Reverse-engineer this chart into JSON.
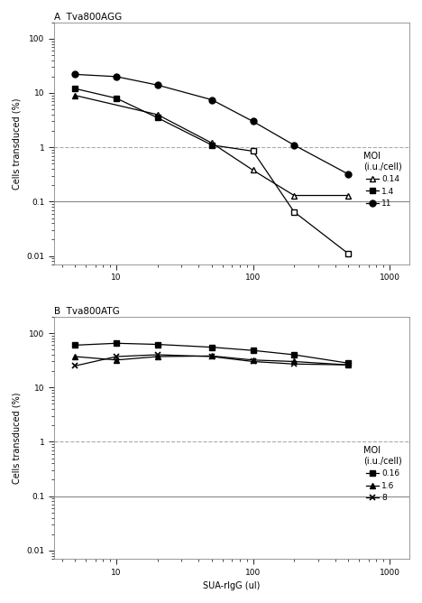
{
  "panel_A": {
    "title": "A  Tva800AGG",
    "series": [
      {
        "label": "0.14",
        "x": [
          5,
          10,
          20,
          50,
          100,
          200,
          500
        ],
        "y": [
          9.0,
          null,
          4.0,
          1.2,
          0.38,
          0.13,
          0.13
        ],
        "marker": "^",
        "filled": [
          true,
          false,
          false,
          false,
          false,
          false,
          false
        ],
        "color": "#000000"
      },
      {
        "label": "1.4",
        "x": [
          5,
          10,
          20,
          50,
          100,
          200,
          500
        ],
        "y": [
          12.0,
          8.0,
          3.5,
          1.1,
          0.85,
          0.065,
          0.011
        ],
        "marker": "s",
        "filled": [
          true,
          true,
          true,
          true,
          false,
          false,
          false
        ],
        "color": "#000000"
      },
      {
        "label": "11",
        "x": [
          5,
          10,
          20,
          50,
          100,
          200,
          500
        ],
        "y": [
          22.0,
          20.0,
          14.0,
          7.5,
          3.0,
          1.1,
          0.32
        ],
        "marker": "o",
        "filled": [
          true,
          true,
          true,
          true,
          true,
          true,
          true
        ],
        "color": "#000000"
      }
    ],
    "ylabel": "Cells transduced (%)",
    "ylim": [
      0.007,
      200
    ],
    "xlim": [
      3.5,
      1400
    ],
    "hline_solid": 0.1,
    "hline_dashed": 1.0,
    "yticks": [
      0.01,
      0.1,
      1,
      10,
      100
    ],
    "ytick_labels": [
      "0.01",
      "0.1",
      "1",
      "10",
      "100"
    ],
    "xticks": [
      10,
      100,
      1000
    ],
    "xtick_labels": [
      "10",
      "100",
      "1000"
    ],
    "legend_title": "MOI\n(i.u./cell)",
    "legend_labels": [
      "0.14",
      "1.4",
      "11"
    ],
    "legend_markers": [
      "^",
      "s",
      "o"
    ],
    "legend_filled": [
      false,
      true,
      true
    ]
  },
  "panel_B": {
    "title": "B  Tva800ATG",
    "series": [
      {
        "label": "0.16",
        "x": [
          5,
          10,
          20,
          50,
          100,
          200,
          500
        ],
        "y": [
          60.0,
          65.0,
          62.0,
          55.0,
          48.0,
          40.0,
          28.0
        ],
        "marker": "s",
        "filled": [
          true,
          true,
          true,
          true,
          true,
          true,
          true
        ],
        "color": "#000000"
      },
      {
        "label": "1.6",
        "x": [
          5,
          10,
          20,
          50,
          100,
          200,
          500
        ],
        "y": [
          37.0,
          32.0,
          37.0,
          38.0,
          32.0,
          30.0,
          26.0
        ],
        "marker": "^",
        "filled": [
          true,
          true,
          true,
          true,
          true,
          true,
          true
        ],
        "color": "#000000"
      },
      {
        "label": "8",
        "x": [
          5,
          10,
          20,
          50,
          100,
          200,
          500
        ],
        "y": [
          25.0,
          37.0,
          40.0,
          37.0,
          30.0,
          27.0,
          26.0
        ],
        "marker": "x",
        "filled": [
          true,
          true,
          true,
          true,
          true,
          true,
          true
        ],
        "color": "#000000"
      }
    ],
    "ylabel": "Cells transduced (%)",
    "xlabel": "SUA-rIgG (ul)",
    "ylim": [
      0.007,
      200
    ],
    "xlim": [
      3.5,
      1400
    ],
    "hline_solid": 0.1,
    "hline_dashed": 1.0,
    "yticks": [
      0.01,
      0.1,
      1,
      10,
      100
    ],
    "ytick_labels": [
      "0.01",
      "0.1",
      "1",
      "10",
      "100"
    ],
    "xticks": [
      10,
      100,
      1000
    ],
    "xtick_labels": [
      "10",
      "100",
      "1000"
    ],
    "legend_title": "MOI\n(i.u./cell)",
    "legend_labels": [
      "0.16",
      "1.6",
      "8"
    ],
    "legend_markers": [
      "s",
      "^",
      "x"
    ],
    "legend_filled": [
      true,
      true,
      false
    ]
  },
  "figure_bg": "#ffffff",
  "axes_bg": "#ffffff",
  "line_color": "#000000",
  "solid_hline_color": "#888888",
  "dashed_hline_color": "#aaaaaa"
}
